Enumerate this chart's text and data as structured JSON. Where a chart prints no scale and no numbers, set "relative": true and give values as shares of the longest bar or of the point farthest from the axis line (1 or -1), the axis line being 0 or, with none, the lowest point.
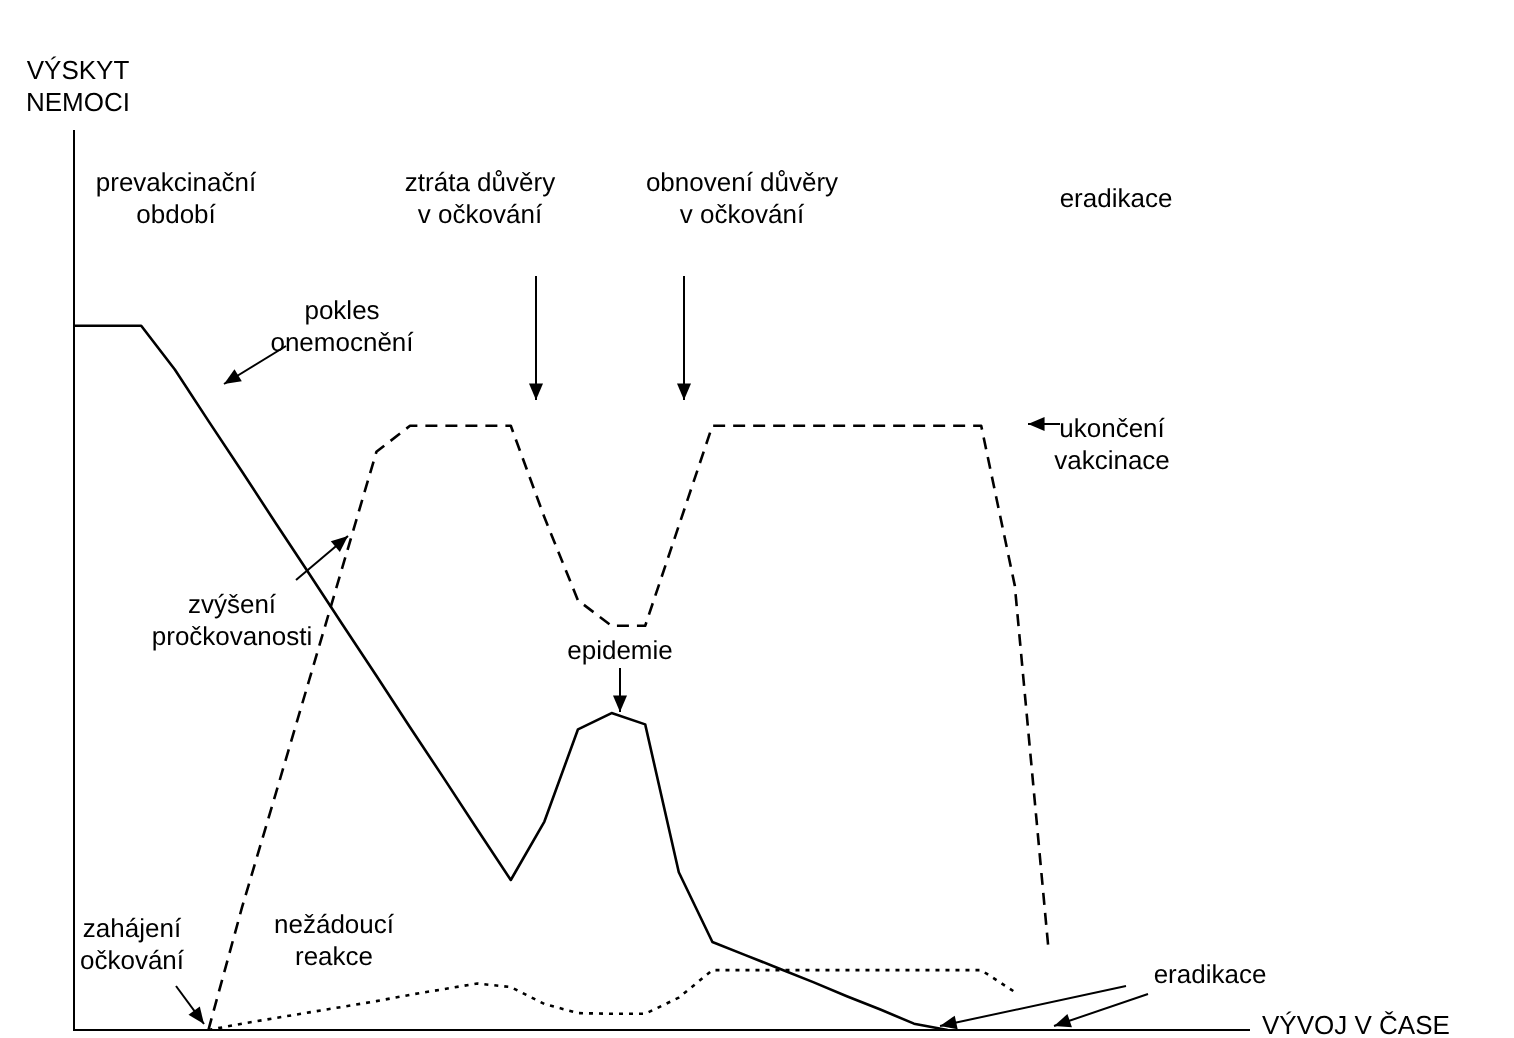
{
  "chart_data": {
    "type": "line",
    "relative": true,
    "xlabel": "VÝVOJ V ČASE",
    "marker": "none",
    "legend": false,
    "categories": [
      null,
      null,
      null,
      null,
      null,
      null,
      null,
      null,
      null,
      null,
      null,
      null,
      null,
      null,
      null,
      null,
      null,
      null,
      null,
      null,
      null,
      null,
      null,
      null,
      null,
      null,
      null,
      null,
      null,
      null,
      null,
      null,
      null,
      null,
      null,
      null
    ],
    "series": [
      {
        "color": "#000000",
        "line_style": "solid",
        "values": [
          1.0,
          1.0,
          1.0,
          0.938,
          0.865,
          0.793,
          0.72,
          0.648,
          0.575,
          0.503,
          0.43,
          0.358,
          0.285,
          0.213,
          0.296,
          0.427,
          0.45,
          0.434,
          0.224,
          0.125,
          0.106,
          0.087,
          0.068,
          0.048,
          0.029,
          0.009,
          0,
          null,
          null,
          null,
          null,
          null,
          null,
          null,
          null,
          null
        ]
      },
      {
        "color": "#000000",
        "line_style": "dashed",
        "values": [
          null,
          null,
          null,
          null,
          0,
          0.174,
          0.335,
          0.497,
          0.659,
          0.821,
          0.858,
          0.858,
          0.858,
          0.858,
          0.728,
          0.61,
          0.574,
          0.574,
          0.716,
          0.858,
          0.858,
          0.858,
          0.858,
          0.858,
          0.858,
          0.858,
          0.858,
          0.858,
          0.631,
          0.116,
          null,
          null,
          null,
          null,
          null,
          null
        ]
      },
      {
        "color": "#000000",
        "line_style": "dotted",
        "values": [
          null,
          null,
          null,
          null,
          0,
          0.009,
          0.017,
          0.025,
          0.033,
          0.041,
          0.05,
          0.058,
          0.066,
          0.061,
          0.037,
          0.024,
          0.023,
          0.023,
          0.046,
          0.085,
          0.085,
          0.085,
          0.085,
          0.085,
          0.085,
          0.085,
          0.085,
          0.085,
          0.054,
          null,
          null,
          null,
          null,
          null,
          null,
          null
        ]
      }
    ],
    "annotations": [
      "prevakcinační\nobdobí",
      "ztráta důvěry\nv očkování",
      "obnovení důvěry\nv očkování",
      "eradikace",
      "pokles\nonemocnění",
      "ukončení\nvakcinace",
      "zvýšení\npročkovanosti",
      "epidemie",
      "zahájení\nočkování",
      "nežádoucí\nreakce",
      "eradikace",
      "VÝSKYT\nNEMOCI"
    ]
  }
}
